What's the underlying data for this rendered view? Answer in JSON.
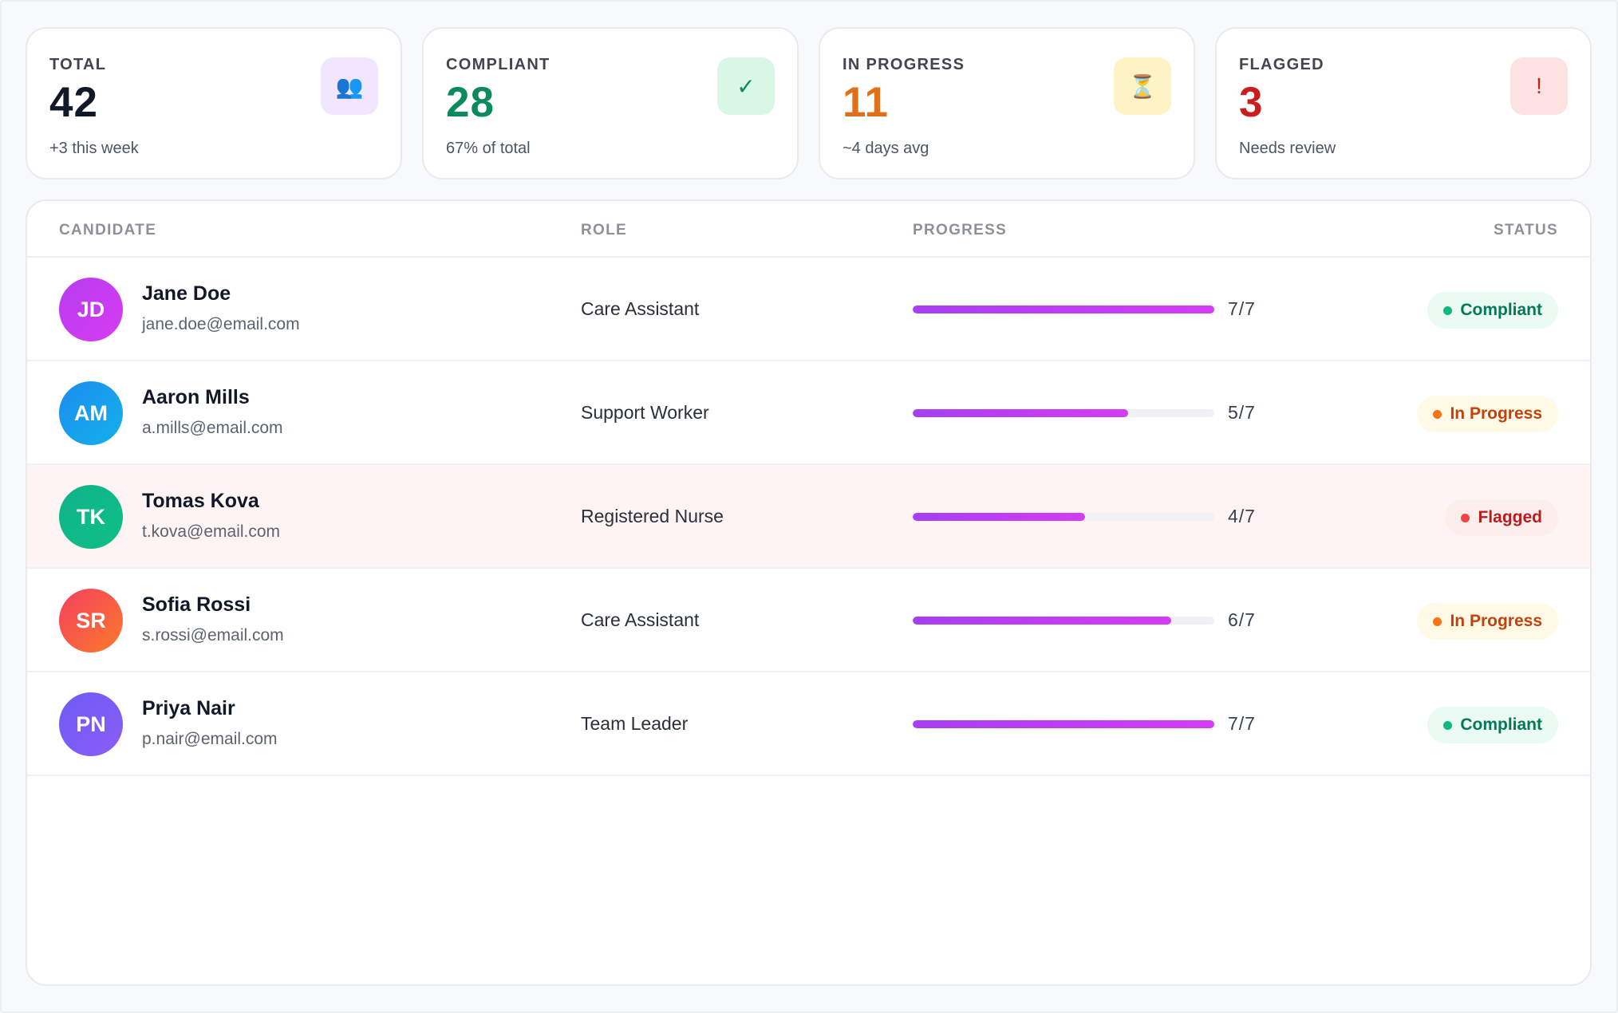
{
  "stats": [
    {
      "label": "TOTAL",
      "value": "42",
      "sub": "+3 this week",
      "icon": "users-icon",
      "glyph": "👥",
      "color": "#111827",
      "icon_bg": "#f1e6fd"
    },
    {
      "label": "COMPLIANT",
      "value": "28",
      "sub": "67% of total",
      "icon": "check-icon",
      "glyph": "✓",
      "color": "#0b8a5e",
      "icon_bg": "#d8f7e7"
    },
    {
      "label": "IN PROGRESS",
      "value": "11",
      "sub": "~4 days avg",
      "icon": "hourglass-icon",
      "glyph": "⏳",
      "color": "#e0701a",
      "icon_bg": "#fdf3c4"
    },
    {
      "label": "FLAGGED",
      "value": "3",
      "sub": "Needs review",
      "icon": "exclamation-icon",
      "glyph": "!",
      "color": "#c81e1e",
      "icon_bg": "#fde2e2"
    }
  ],
  "table": {
    "headers": {
      "candidate": "CANDIDATE",
      "role": "ROLE",
      "progress": "PROGRESS",
      "status": "STATUS"
    },
    "rows": [
      {
        "initials": "JD",
        "name": "Jane Doe",
        "email": "jane.doe@email.com",
        "role": "Care Assistant",
        "done": 7,
        "total": 7,
        "count": "7/7",
        "status": "Compliant",
        "status_kind": "compliant",
        "flagged": false,
        "avatar_gradient": [
          "#b83cf0",
          "#d63cf2"
        ]
      },
      {
        "initials": "AM",
        "name": "Aaron Mills",
        "email": "a.mills@email.com",
        "role": "Support Worker",
        "done": 5,
        "total": 7,
        "count": "5/7",
        "status": "In Progress",
        "status_kind": "progress",
        "flagged": false,
        "avatar_gradient": [
          "#1d8cf0",
          "#12b2e8"
        ]
      },
      {
        "initials": "TK",
        "name": "Tomas Kova",
        "email": "t.kova@email.com",
        "role": "Registered Nurse",
        "done": 4,
        "total": 7,
        "count": "4/7",
        "status": "Flagged",
        "status_kind": "flagged",
        "flagged": true,
        "avatar_gradient": [
          "#0fb38a",
          "#0fbf86"
        ]
      },
      {
        "initials": "SR",
        "name": "Sofia Rossi",
        "email": "s.rossi@email.com",
        "role": "Care Assistant",
        "done": 6,
        "total": 7,
        "count": "6/7",
        "status": "In Progress",
        "status_kind": "progress",
        "flagged": false,
        "avatar_gradient": [
          "#f43f5e",
          "#fb7a2c"
        ]
      },
      {
        "initials": "PN",
        "name": "Priya Nair",
        "email": "p.nair@email.com",
        "role": "Team Leader",
        "done": 7,
        "total": 7,
        "count": "7/7",
        "status": "Compliant",
        "status_kind": "compliant",
        "flagged": false,
        "avatar_gradient": [
          "#6d5cf5",
          "#8b5cf6"
        ]
      }
    ]
  }
}
